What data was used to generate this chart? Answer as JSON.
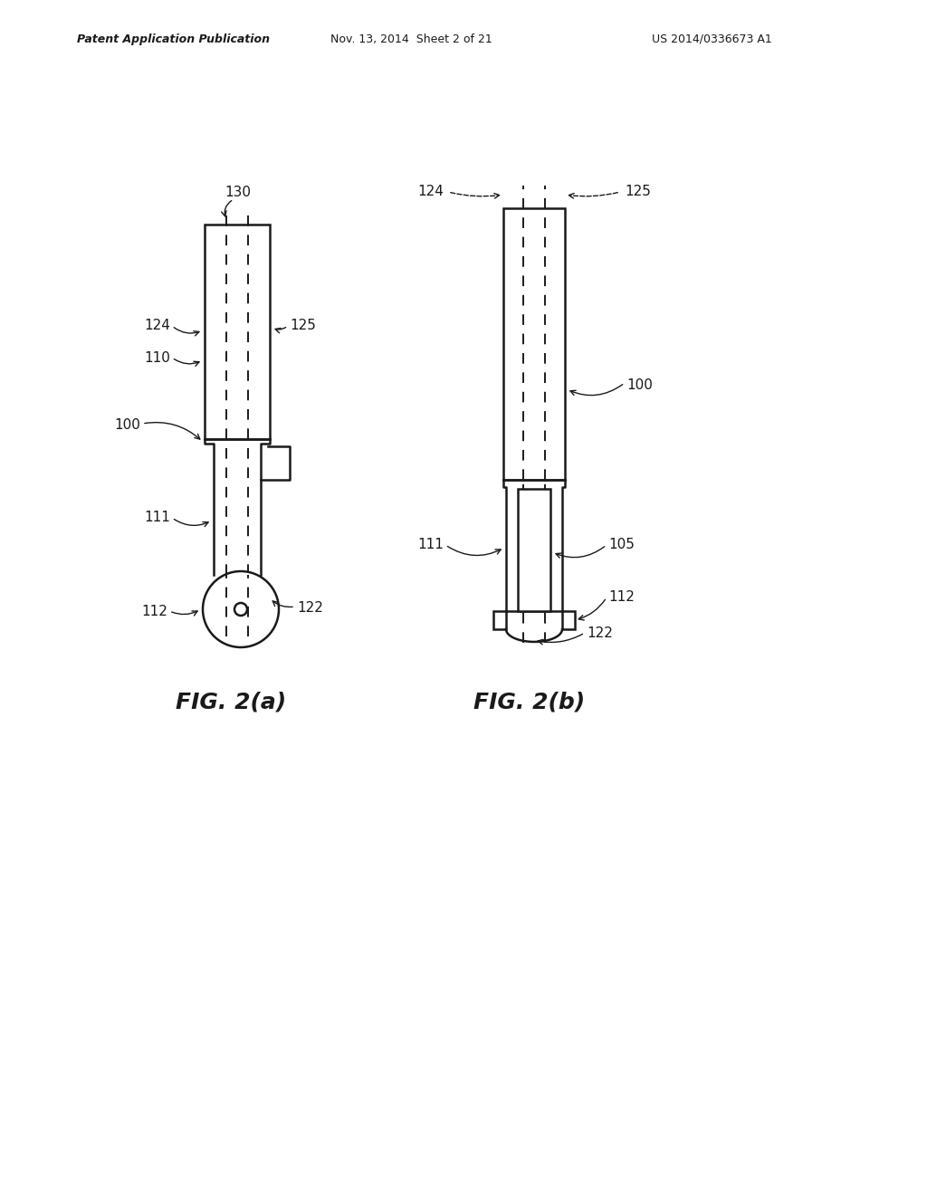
{
  "bg_color": "#ffffff",
  "line_color": "#1a1a1a",
  "header_left": "Patent Application Publication",
  "header_mid": "Nov. 13, 2014  Sheet 2 of 21",
  "header_right": "US 2014/0336673 A1",
  "fig_a_label": "FIG. 2(a)",
  "fig_b_label": "FIG. 2(b)"
}
